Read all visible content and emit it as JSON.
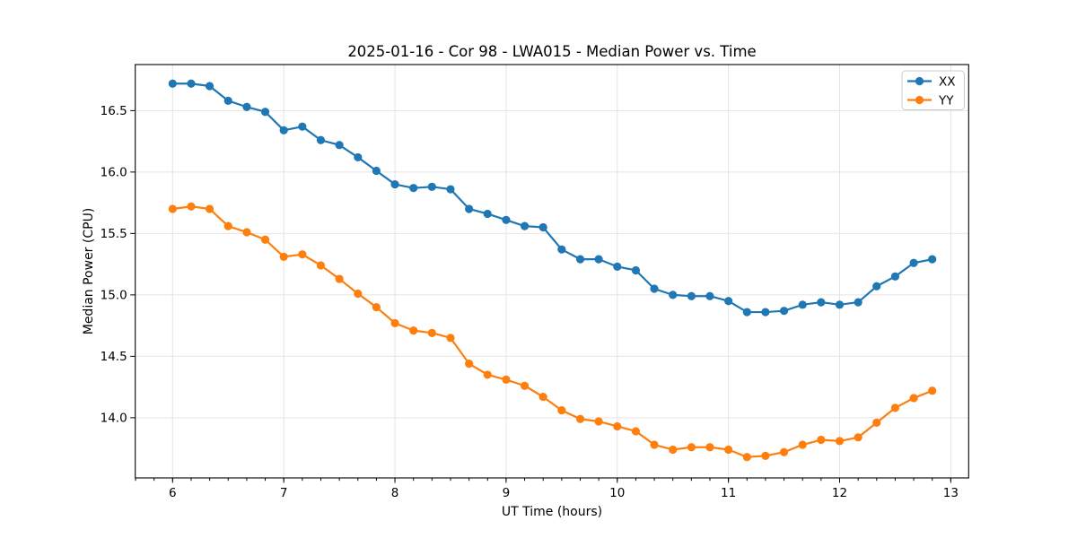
{
  "chart_data": {
    "type": "line",
    "title": "2025-01-16 - Cor 98 - LWA015 - Median Power vs. Time",
    "xlabel": "UT Time (hours)",
    "ylabel": "Median Power (CPU)",
    "xlim": [
      5.664,
      13.161
    ],
    "ylim": [
      13.51,
      16.875
    ],
    "grid": true,
    "legend_position": "upper right",
    "x_major_ticks": [
      6,
      7,
      8,
      9,
      10,
      11,
      12,
      13
    ],
    "x_tick_labels": [
      "6",
      "7",
      "8",
      "9",
      "10",
      "11",
      "12",
      "13"
    ],
    "x_minor_tick_step": 0.166667,
    "y_major_ticks": [
      14.0,
      14.5,
      15.0,
      15.5,
      16.0,
      16.5
    ],
    "y_tick_labels": [
      "14.0",
      "14.5",
      "15.0",
      "15.5",
      "16.0",
      "16.5"
    ],
    "x": [
      6.0,
      6.167,
      6.333,
      6.5,
      6.667,
      6.833,
      7.0,
      7.167,
      7.333,
      7.5,
      7.667,
      7.833,
      8.0,
      8.167,
      8.333,
      8.5,
      8.667,
      8.833,
      9.0,
      9.167,
      9.333,
      9.5,
      9.667,
      9.833,
      10.0,
      10.167,
      10.333,
      10.5,
      10.667,
      10.833,
      11.0,
      11.167,
      11.333,
      11.5,
      11.667,
      11.833,
      12.0,
      12.167,
      12.333,
      12.5,
      12.667,
      12.833
    ],
    "series": [
      {
        "name": "XX",
        "color": "#1f77b4",
        "values": [
          16.72,
          16.72,
          16.7,
          16.58,
          16.53,
          16.49,
          16.34,
          16.37,
          16.26,
          16.22,
          16.12,
          16.01,
          15.9,
          15.87,
          15.88,
          15.86,
          15.7,
          15.66,
          15.61,
          15.56,
          15.55,
          15.37,
          15.29,
          15.29,
          15.23,
          15.2,
          15.05,
          15.0,
          14.99,
          14.99,
          14.95,
          14.86,
          14.86,
          14.87,
          14.92,
          14.94,
          14.92,
          14.94,
          15.07,
          15.15,
          15.26,
          15.29
        ]
      },
      {
        "name": "YY",
        "color": "#ff7f0e",
        "values": [
          15.7,
          15.72,
          15.7,
          15.56,
          15.51,
          15.45,
          15.31,
          15.33,
          15.24,
          15.13,
          15.01,
          14.9,
          14.77,
          14.71,
          14.69,
          14.65,
          14.44,
          14.35,
          14.31,
          14.26,
          14.17,
          14.06,
          13.99,
          13.97,
          13.93,
          13.89,
          13.78,
          13.74,
          13.76,
          13.76,
          13.74,
          13.68,
          13.69,
          13.72,
          13.78,
          13.82,
          13.81,
          13.84,
          13.96,
          14.08,
          14.16,
          14.22
        ]
      }
    ]
  }
}
